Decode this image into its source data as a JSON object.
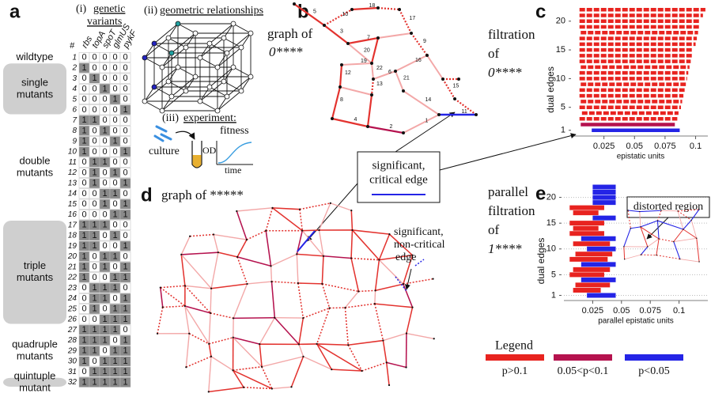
{
  "panel_a": {
    "label": "a",
    "variants_prefix": "(i)",
    "variants_title": [
      "genetic",
      "variants"
    ],
    "geometry_prefix": "(ii)",
    "geometry_title": "geometric relationships",
    "experiment_prefix": "(iii)",
    "experiment_title": "experiment:",
    "culture": "culture",
    "fitness": "fitness",
    "od": "OD",
    "time": "time",
    "table": {
      "columns": [
        "#",
        "rbs",
        "topA",
        "spoT",
        "glmUS",
        "pykF"
      ],
      "groups": [
        {
          "label": [
            "wildtype"
          ],
          "boxed": false,
          "rows": [
            [
              1,
              0,
              0,
              0,
              0,
              0
            ]
          ]
        },
        {
          "label": [
            "single",
            "mutants"
          ],
          "boxed": true,
          "rows": [
            [
              2,
              1,
              0,
              0,
              0,
              0
            ],
            [
              3,
              0,
              1,
              0,
              0,
              0
            ],
            [
              4,
              0,
              0,
              1,
              0,
              0
            ],
            [
              5,
              0,
              0,
              0,
              1,
              0
            ],
            [
              6,
              0,
              0,
              0,
              0,
              1
            ]
          ]
        },
        {
          "label": [
            "double",
            "mutants"
          ],
          "boxed": false,
          "rows": [
            [
              7,
              1,
              1,
              0,
              0,
              0
            ],
            [
              8,
              1,
              0,
              1,
              0,
              0
            ],
            [
              9,
              1,
              0,
              0,
              1,
              0
            ],
            [
              10,
              1,
              0,
              0,
              0,
              1
            ],
            [
              11,
              0,
              1,
              1,
              0,
              0
            ],
            [
              12,
              0,
              1,
              0,
              1,
              0
            ],
            [
              13,
              0,
              1,
              0,
              0,
              1
            ],
            [
              14,
              0,
              0,
              1,
              1,
              0
            ],
            [
              15,
              0,
              0,
              1,
              0,
              1
            ],
            [
              16,
              0,
              0,
              0,
              1,
              1
            ]
          ]
        },
        {
          "label": [
            "triple",
            "mutants"
          ],
          "boxed": true,
          "rows": [
            [
              17,
              1,
              1,
              1,
              0,
              0
            ],
            [
              18,
              1,
              1,
              0,
              1,
              0
            ],
            [
              19,
              1,
              1,
              0,
              0,
              1
            ],
            [
              20,
              1,
              0,
              1,
              1,
              0
            ],
            [
              21,
              1,
              0,
              1,
              0,
              1
            ],
            [
              22,
              1,
              0,
              0,
              1,
              1
            ],
            [
              23,
              0,
              1,
              1,
              1,
              0
            ],
            [
              24,
              0,
              1,
              1,
              0,
              1
            ],
            [
              25,
              0,
              1,
              0,
              1,
              1
            ],
            [
              26,
              0,
              0,
              1,
              1,
              1
            ]
          ]
        },
        {
          "label": [
            "quadruple",
            "mutants"
          ],
          "boxed": false,
          "rows": [
            [
              27,
              1,
              1,
              1,
              1,
              0
            ],
            [
              28,
              1,
              1,
              1,
              0,
              1
            ],
            [
              29,
              1,
              1,
              0,
              1,
              1
            ],
            [
              30,
              1,
              0,
              1,
              1,
              1
            ],
            [
              31,
              0,
              1,
              1,
              1,
              1
            ]
          ]
        },
        {
          "label": [
            "quintuple",
            "mutant"
          ],
          "boxed": true,
          "rows": [
            [
              32,
              1,
              1,
              1,
              1,
              1
            ]
          ]
        }
      ]
    }
  },
  "panel_b": {
    "label": "b",
    "title": "graph of",
    "subtitle": "0****",
    "edge_labels": [
      "1",
      "2",
      "3",
      "4",
      "5",
      "6",
      "7",
      "8",
      "9",
      "10",
      "11",
      "12",
      "13",
      "14",
      "15",
      "16",
      "17",
      "18",
      "19",
      "20",
      "21",
      "22"
    ]
  },
  "panel_d": {
    "label": "d",
    "title": "graph of *****"
  },
  "annotations": {
    "critical": [
      "significant,",
      "critical edge"
    ],
    "noncritical": [
      "significant,",
      "non-critical",
      "edge"
    ],
    "distorted": "distorted region"
  },
  "chart_data": [
    {
      "type": "bar",
      "label": "c",
      "title_lines": [
        "filtration",
        "of",
        "0****"
      ],
      "xlabel": "epistatic units",
      "ylabel": "dual edges",
      "dashed": true,
      "grid": false,
      "y": [
        1,
        2,
        3,
        4,
        5,
        6,
        7,
        8,
        9,
        10,
        11,
        12,
        13,
        14,
        15,
        16,
        17,
        18,
        19,
        20,
        21,
        22
      ],
      "start": [
        0.015,
        0.006,
        0.005,
        0.007,
        0.005,
        0.006,
        0.005,
        0.005,
        0.006,
        0.005,
        0.005,
        0.006,
        0.005,
        0.005,
        0.005,
        0.005,
        0.005,
        0.006,
        0.005,
        0.005,
        0.005,
        0.005
      ],
      "end": [
        0.087,
        0.083,
        0.085,
        0.086,
        0.088,
        0.089,
        0.09,
        0.091,
        0.092,
        0.093,
        0.094,
        0.095,
        0.096,
        0.097,
        0.098,
        0.1,
        0.101,
        0.102,
        0.103,
        0.104,
        0.106,
        0.108
      ],
      "colors": [
        "#2424e6",
        "#b5124e",
        "#e8231f",
        "#e8231f",
        "#e8231f",
        "#e8231f",
        "#e8231f",
        "#e8231f",
        "#e8231f",
        "#e8231f",
        "#e8231f",
        "#e8231f",
        "#e8231f",
        "#e8231f",
        "#e8231f",
        "#e8231f",
        "#e8231f",
        "#e8231f",
        "#e8231f",
        "#e8231f",
        "#e8231f",
        "#e8231f"
      ],
      "xlim": [
        0,
        0.11
      ],
      "xticks": [
        0.025,
        0.05,
        0.075,
        0.1
      ],
      "ylim": [
        0,
        23
      ],
      "yticks": [
        1,
        5,
        10,
        15,
        20
      ]
    },
    {
      "type": "bar",
      "label": "e",
      "title_lines": [
        "parallel",
        "filtration",
        "of",
        "1****"
      ],
      "xlabel": "parallel epistatic units",
      "ylabel": "dual edges",
      "dashed": false,
      "grid": true,
      "y": [
        1,
        2,
        3,
        4,
        5,
        6,
        7,
        8,
        9,
        10,
        11,
        12,
        13,
        14,
        15,
        16,
        17,
        18,
        19,
        20,
        21,
        22
      ],
      "start": [
        0.02,
        0.008,
        0.01,
        0.015,
        0.005,
        0.008,
        0.015,
        0.005,
        0.01,
        0.02,
        0.008,
        0.015,
        0.005,
        0.008,
        0.005,
        0.025,
        0.008,
        0.005,
        0.025,
        0.025,
        0.025,
        0.025
      ],
      "end": [
        0.045,
        0.032,
        0.04,
        0.045,
        0.035,
        0.04,
        0.045,
        0.038,
        0.042,
        0.045,
        0.04,
        0.045,
        0.035,
        0.03,
        0.035,
        0.045,
        0.03,
        0.035,
        0.045,
        0.045,
        0.045,
        0.045
      ],
      "colors": [
        "#2424e6",
        "#e8231f",
        "#e8231f",
        "#2424e6",
        "#e8231f",
        "#e8231f",
        "#2424e6",
        "#e8231f",
        "#e8231f",
        "#2424e6",
        "#e8231f",
        "#2424e6",
        "#e8231f",
        "#e8231f",
        "#e8231f",
        "#2424e6",
        "#e8231f",
        "#e8231f",
        "#2424e6",
        "#2424e6",
        "#2424e6",
        "#2424e6"
      ],
      "xlim": [
        0,
        0.125
      ],
      "xticks": [
        0.025,
        0.05,
        0.075,
        0.1
      ],
      "ylim": [
        0,
        23
      ],
      "yticks": [
        1,
        5,
        10,
        15,
        20
      ]
    }
  ],
  "legend": {
    "title": "Legend",
    "items": [
      {
        "name": "p>0.1",
        "color": "#e8231f"
      },
      {
        "name": "0.05<p<0.1",
        "color": "#b5124e"
      },
      {
        "name": "p<0.05",
        "color": "#2424e6"
      }
    ]
  }
}
